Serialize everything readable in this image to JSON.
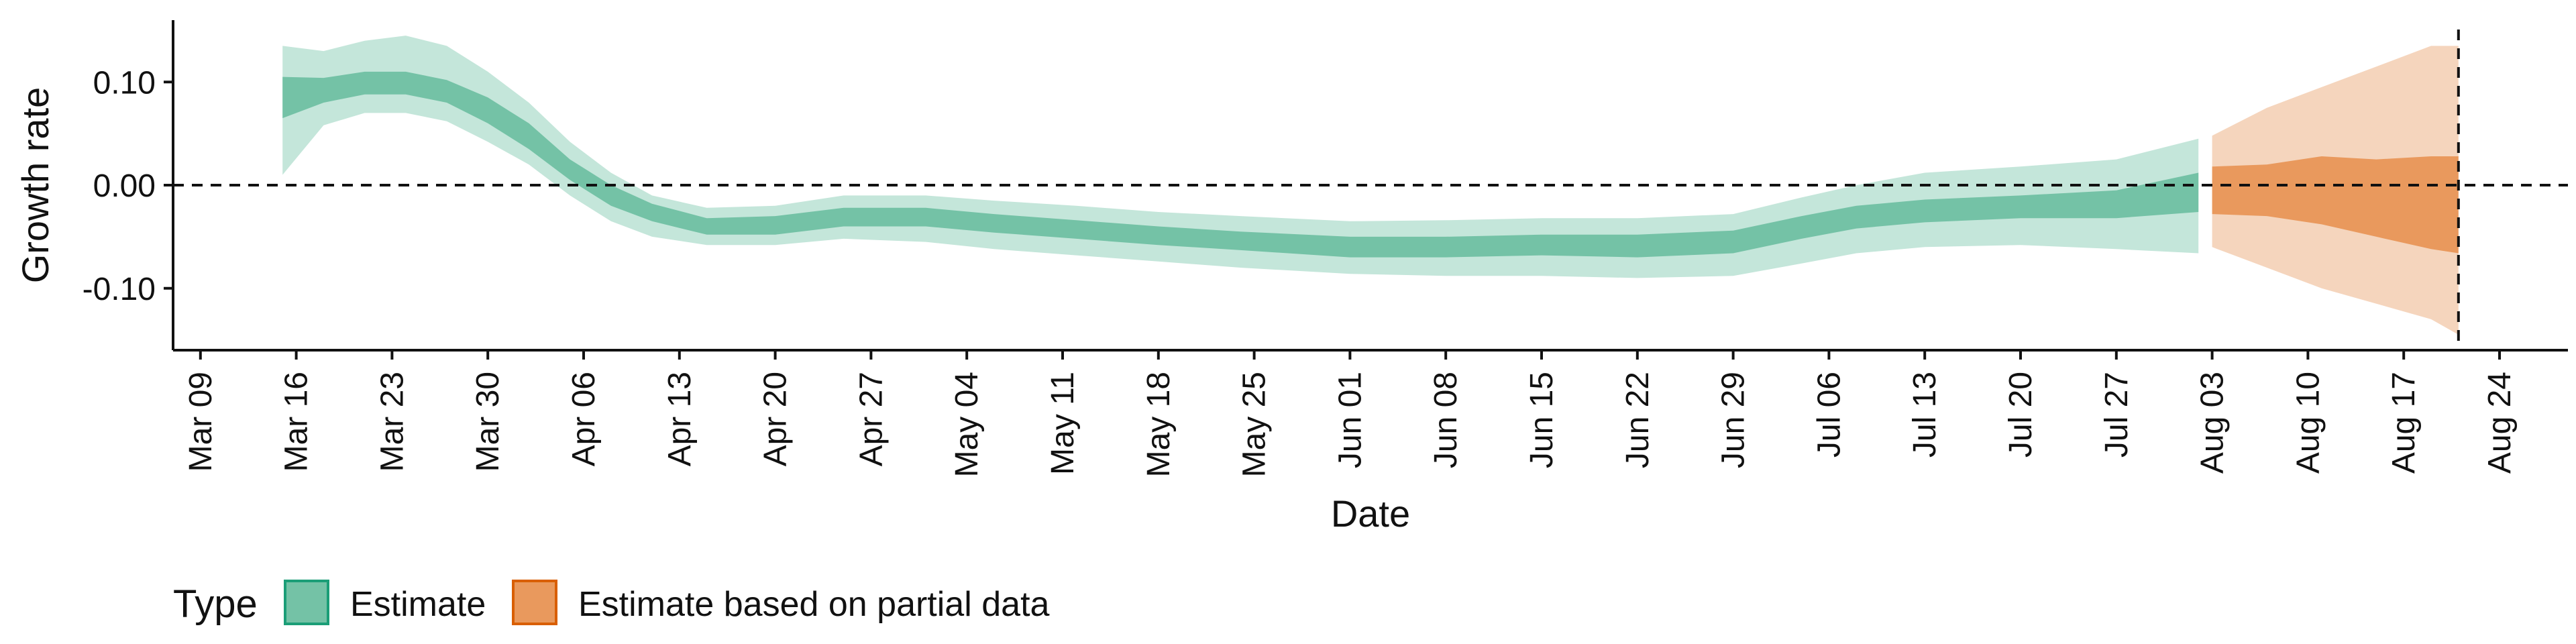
{
  "chart_data": {
    "type": "area",
    "title": "",
    "xlabel": "Date",
    "ylabel": "Growth rate",
    "x_tick_labels": [
      "Mar 09",
      "Mar 16",
      "Mar 23",
      "Mar 30",
      "Apr 06",
      "Apr 13",
      "Apr 20",
      "Apr 27",
      "May 04",
      "May 11",
      "May 18",
      "May 25",
      "Jun 01",
      "Jun 08",
      "Jun 15",
      "Jun 22",
      "Jun 29",
      "Jul 06",
      "Jul 13",
      "Jul 20",
      "Jul 27",
      "Aug 03",
      "Aug 10",
      "Aug 17",
      "Aug 24"
    ],
    "x_tick_dates": [
      "2020-03-09",
      "2020-03-16",
      "2020-03-23",
      "2020-03-30",
      "2020-04-06",
      "2020-04-13",
      "2020-04-20",
      "2020-04-27",
      "2020-05-04",
      "2020-05-11",
      "2020-05-18",
      "2020-05-25",
      "2020-06-01",
      "2020-06-08",
      "2020-06-15",
      "2020-06-22",
      "2020-06-29",
      "2020-07-06",
      "2020-07-13",
      "2020-07-20",
      "2020-07-27",
      "2020-08-03",
      "2020-08-10",
      "2020-08-17",
      "2020-08-24"
    ],
    "y_ticks": [
      0.1,
      0.0,
      -0.1
    ],
    "y_tick_labels": [
      "0.10",
      "0.00",
      "-0.10"
    ],
    "xlim": [
      "2020-03-07",
      "2020-08-29"
    ],
    "ylim": [
      -0.16,
      0.16
    ],
    "grid": false,
    "hline": 0,
    "vline": "2020-08-21",
    "legend": {
      "title": "Type",
      "position": "bottom-left",
      "entries": [
        {
          "label": "Estimate",
          "fill": "#74c2a6",
          "stroke": "#1b9e77"
        },
        {
          "label": "Estimate based on partial data",
          "fill": "#e9995d",
          "stroke": "#d95f02"
        }
      ]
    },
    "series": [
      {
        "name": "Estimate",
        "color_outer": "#c4e6da",
        "color_inner": "#74c2a6",
        "points": [
          {
            "x": "2020-03-15",
            "outer": [
              0.01,
              0.135
            ],
            "inner": [
              0.065,
              0.105
            ]
          },
          {
            "x": "2020-03-18",
            "outer": [
              0.058,
              0.13
            ],
            "inner": [
              0.08,
              0.104
            ]
          },
          {
            "x": "2020-03-21",
            "outer": [
              0.07,
              0.14
            ],
            "inner": [
              0.088,
              0.11
            ]
          },
          {
            "x": "2020-03-24",
            "outer": [
              0.07,
              0.145
            ],
            "inner": [
              0.088,
              0.11
            ]
          },
          {
            "x": "2020-03-27",
            "outer": [
              0.062,
              0.135
            ],
            "inner": [
              0.08,
              0.102
            ]
          },
          {
            "x": "2020-03-30",
            "outer": [
              0.042,
              0.11
            ],
            "inner": [
              0.06,
              0.085
            ]
          },
          {
            "x": "2020-04-02",
            "outer": [
              0.02,
              0.08
            ],
            "inner": [
              0.035,
              0.06
            ]
          },
          {
            "x": "2020-04-05",
            "outer": [
              -0.01,
              0.042
            ],
            "inner": [
              0.005,
              0.025
            ]
          },
          {
            "x": "2020-04-08",
            "outer": [
              -0.035,
              0.012
            ],
            "inner": [
              -0.02,
              0.0
            ]
          },
          {
            "x": "2020-04-11",
            "outer": [
              -0.05,
              -0.01
            ],
            "inner": [
              -0.035,
              -0.018
            ]
          },
          {
            "x": "2020-04-15",
            "outer": [
              -0.058,
              -0.022
            ],
            "inner": [
              -0.048,
              -0.032
            ]
          },
          {
            "x": "2020-04-20",
            "outer": [
              -0.058,
              -0.02
            ],
            "inner": [
              -0.048,
              -0.03
            ]
          },
          {
            "x": "2020-04-25",
            "outer": [
              -0.052,
              -0.01
            ],
            "inner": [
              -0.04,
              -0.022
            ]
          },
          {
            "x": "2020-05-01",
            "outer": [
              -0.055,
              -0.01
            ],
            "inner": [
              -0.04,
              -0.022
            ]
          },
          {
            "x": "2020-05-06",
            "outer": [
              -0.062,
              -0.015
            ],
            "inner": [
              -0.046,
              -0.028
            ]
          },
          {
            "x": "2020-05-12",
            "outer": [
              -0.068,
              -0.02
            ],
            "inner": [
              -0.052,
              -0.034
            ]
          },
          {
            "x": "2020-05-18",
            "outer": [
              -0.074,
              -0.026
            ],
            "inner": [
              -0.058,
              -0.04
            ]
          },
          {
            "x": "2020-05-24",
            "outer": [
              -0.08,
              -0.03
            ],
            "inner": [
              -0.063,
              -0.045
            ]
          },
          {
            "x": "2020-06-01",
            "outer": [
              -0.086,
              -0.035
            ],
            "inner": [
              -0.07,
              -0.05
            ]
          },
          {
            "x": "2020-06-08",
            "outer": [
              -0.088,
              -0.034
            ],
            "inner": [
              -0.07,
              -0.05
            ]
          },
          {
            "x": "2020-06-15",
            "outer": [
              -0.088,
              -0.032
            ],
            "inner": [
              -0.068,
              -0.048
            ]
          },
          {
            "x": "2020-06-22",
            "outer": [
              -0.09,
              -0.032
            ],
            "inner": [
              -0.07,
              -0.048
            ]
          },
          {
            "x": "2020-06-29",
            "outer": [
              -0.088,
              -0.028
            ],
            "inner": [
              -0.066,
              -0.044
            ]
          },
          {
            "x": "2020-07-04",
            "outer": [
              -0.076,
              -0.012
            ],
            "inner": [
              -0.052,
              -0.03
            ]
          },
          {
            "x": "2020-07-08",
            "outer": [
              -0.066,
              0.0
            ],
            "inner": [
              -0.042,
              -0.02
            ]
          },
          {
            "x": "2020-07-13",
            "outer": [
              -0.06,
              0.012
            ],
            "inner": [
              -0.036,
              -0.014
            ]
          },
          {
            "x": "2020-07-20",
            "outer": [
              -0.058,
              0.018
            ],
            "inner": [
              -0.032,
              -0.01
            ]
          },
          {
            "x": "2020-07-27",
            "outer": [
              -0.062,
              0.025
            ],
            "inner": [
              -0.032,
              -0.005
            ]
          },
          {
            "x": "2020-08-02",
            "outer": [
              -0.066,
              0.045
            ],
            "inner": [
              -0.026,
              0.012
            ]
          }
        ]
      },
      {
        "name": "Estimate based on partial data",
        "color_outer": "#f5d5bd",
        "color_inner": "#e9995d",
        "points": [
          {
            "x": "2020-08-03",
            "outer": [
              -0.06,
              0.048
            ],
            "inner": [
              -0.028,
              0.018
            ]
          },
          {
            "x": "2020-08-07",
            "outer": [
              -0.08,
              0.075
            ],
            "inner": [
              -0.03,
              0.02
            ]
          },
          {
            "x": "2020-08-11",
            "outer": [
              -0.1,
              0.095
            ],
            "inner": [
              -0.038,
              0.028
            ]
          },
          {
            "x": "2020-08-15",
            "outer": [
              -0.115,
              0.115
            ],
            "inner": [
              -0.05,
              0.025
            ]
          },
          {
            "x": "2020-08-19",
            "outer": [
              -0.13,
              0.135
            ],
            "inner": [
              -0.062,
              0.028
            ]
          },
          {
            "x": "2020-08-21",
            "outer": [
              -0.145,
              0.135
            ],
            "inner": [
              -0.066,
              0.028
            ]
          }
        ]
      }
    ]
  }
}
